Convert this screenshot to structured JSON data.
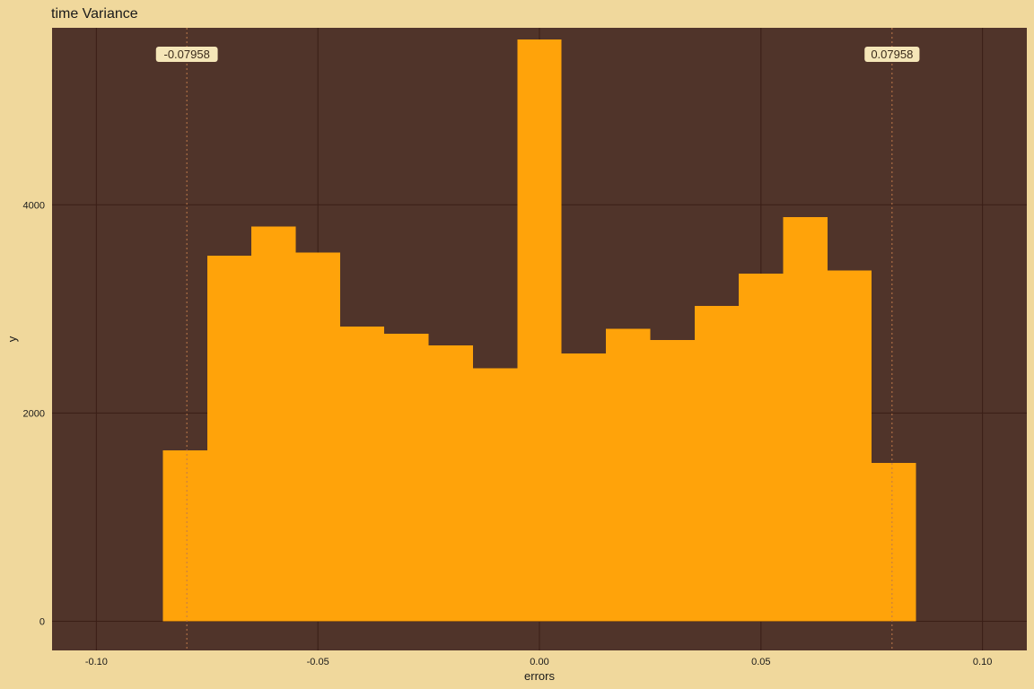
{
  "chart_data": {
    "type": "bar",
    "title": "time Variance",
    "xlabel": "errors",
    "ylabel": "y",
    "xlim": [
      -0.11,
      0.11
    ],
    "ylim": [
      -280,
      5700
    ],
    "x_ticks": [
      -0.1,
      -0.05,
      0.0,
      0.05,
      0.1
    ],
    "x_tick_labels": [
      "-0.10",
      "-0.05",
      "0.00",
      "0.05",
      "0.10"
    ],
    "y_ticks": [
      0,
      2000,
      4000
    ],
    "y_tick_labels": [
      "0",
      "2000",
      "4000"
    ],
    "grid": true,
    "bins": [
      {
        "x0": -0.085,
        "x1": -0.075,
        "count": 1640
      },
      {
        "x0": -0.075,
        "x1": -0.065,
        "count": 3510
      },
      {
        "x0": -0.065,
        "x1": -0.055,
        "count": 3790
      },
      {
        "x0": -0.055,
        "x1": -0.045,
        "count": 3540
      },
      {
        "x0": -0.045,
        "x1": -0.035,
        "count": 2830
      },
      {
        "x0": -0.035,
        "x1": -0.025,
        "count": 2760
      },
      {
        "x0": -0.025,
        "x1": -0.015,
        "count": 2650
      },
      {
        "x0": -0.015,
        "x1": -0.005,
        "count": 2430
      },
      {
        "x0": -0.005,
        "x1": 0.005,
        "count": 5590
      },
      {
        "x0": 0.005,
        "x1": 0.015,
        "count": 2570
      },
      {
        "x0": 0.015,
        "x1": 0.025,
        "count": 2810
      },
      {
        "x0": 0.025,
        "x1": 0.035,
        "count": 2700
      },
      {
        "x0": 0.035,
        "x1": 0.045,
        "count": 3030
      },
      {
        "x0": 0.045,
        "x1": 0.055,
        "count": 3340
      },
      {
        "x0": 0.055,
        "x1": 0.065,
        "count": 3880
      },
      {
        "x0": 0.065,
        "x1": 0.075,
        "count": 3370
      },
      {
        "x0": 0.075,
        "x1": 0.085,
        "count": 1520
      }
    ],
    "reference_lines": [
      {
        "x": -0.07958,
        "label": "-0.07958"
      },
      {
        "x": 0.07958,
        "label": "0.07958"
      }
    ],
    "colors": {
      "background": "#F0D89C",
      "panel": "#50342A",
      "bar": "#FFA30A",
      "grid": "#3A1E16",
      "reference_line": "#C07A4A",
      "label_fill": "#F5E6B8"
    }
  }
}
